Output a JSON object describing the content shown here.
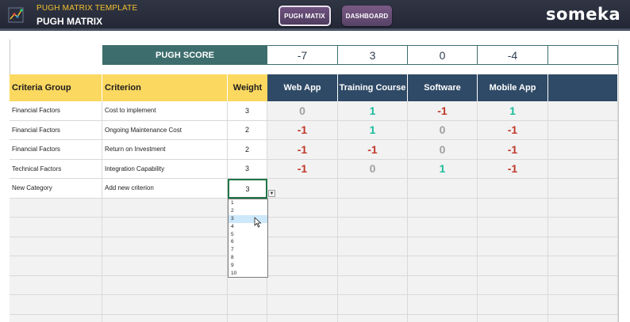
{
  "header": {
    "app_title": "PUGH MATRIX TEMPLATE",
    "page_title": "PUGH MATRIX",
    "nav": [
      {
        "label": "PUGH MATIX",
        "active": true
      },
      {
        "label": "DASHBOARD",
        "active": false
      }
    ],
    "brand": "someka",
    "logo_icon": "chart-logo-icon"
  },
  "score_row": {
    "label": "PUGH SCORE",
    "scores": [
      "-7",
      "3",
      "0",
      "-4",
      ""
    ]
  },
  "columns": {
    "group": "Criteria Group",
    "criterion": "Criterion",
    "weight": "Weight",
    "options": [
      "Web App",
      "Training Course",
      "Software",
      "Mobile App",
      ""
    ]
  },
  "rows": [
    {
      "group": "Financial Factors",
      "criterion": "Cost to implement",
      "weight": "3",
      "scores": [
        "0",
        "1",
        "-1",
        "1"
      ]
    },
    {
      "group": "Financial Factors",
      "criterion": "Ongoing Maintenance Cost",
      "weight": "2",
      "scores": [
        "-1",
        "1",
        "0",
        "-1"
      ]
    },
    {
      "group": "Financial Factors",
      "criterion": "Return on Investment",
      "weight": "2",
      "scores": [
        "-1",
        "-1",
        "0",
        "-1"
      ]
    },
    {
      "group": "Technical Factors",
      "criterion": "Integration Capability",
      "weight": "3",
      "scores": [
        "-1",
        "0",
        "1",
        "-1"
      ]
    },
    {
      "group": "New Category",
      "criterion": "Add new criterion",
      "weight": "3",
      "scores": [
        "",
        "",
        "",
        ""
      ]
    }
  ],
  "weight_dropdown": {
    "current": "3",
    "options": [
      "1",
      "2",
      "3",
      "4",
      "5",
      "6",
      "7",
      "8",
      "9",
      "10"
    ],
    "highlighted": "3"
  },
  "colors": {
    "negative": "#c0392b",
    "positive": "#1abc9c",
    "neutral": "#a0a0a0",
    "score_header": "#3d6d6d",
    "option_header": "#2f4a66",
    "criteria_header": "#fbd860"
  }
}
